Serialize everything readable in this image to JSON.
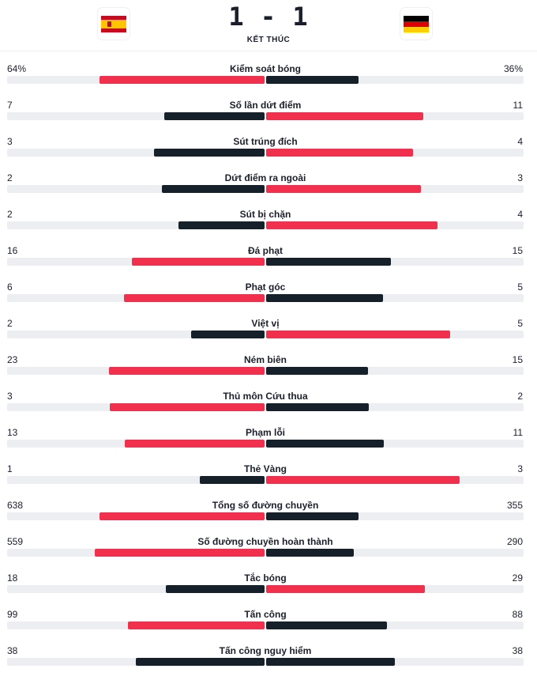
{
  "header": {
    "score": "1 - 1",
    "status": "KẾT THÚC"
  },
  "flags": {
    "home": {
      "icon": "spain-flag-icon",
      "colors": [
        "#c60b1e",
        "#ffc400",
        "#c60b1e"
      ]
    },
    "away": {
      "icon": "germany-flag-icon",
      "colors": [
        "#000000",
        "#dd0000",
        "#ffce00"
      ]
    }
  },
  "colors": {
    "leading": "#f0304d",
    "trailing": "#15202b",
    "track": "#eceef1"
  },
  "stats": [
    {
      "label": "Kiểm soát bóng",
      "home": "64%",
      "away": "36%",
      "home_value": 64,
      "away_value": 36
    },
    {
      "label": "Số lần dứt điểm",
      "home": "7",
      "away": "11",
      "home_value": 7,
      "away_value": 11
    },
    {
      "label": "Sút trúng đích",
      "home": "3",
      "away": "4",
      "home_value": 3,
      "away_value": 4
    },
    {
      "label": "Dứt điểm ra ngoài",
      "home": "2",
      "away": "3",
      "home_value": 2,
      "away_value": 3
    },
    {
      "label": "Sút bị chặn",
      "home": "2",
      "away": "4",
      "home_value": 2,
      "away_value": 4
    },
    {
      "label": "Đá phạt",
      "home": "16",
      "away": "15",
      "home_value": 16,
      "away_value": 15
    },
    {
      "label": "Phạt góc",
      "home": "6",
      "away": "5",
      "home_value": 6,
      "away_value": 5
    },
    {
      "label": "Việt vị",
      "home": "2",
      "away": "5",
      "home_value": 2,
      "away_value": 5
    },
    {
      "label": "Ném biên",
      "home": "23",
      "away": "15",
      "home_value": 23,
      "away_value": 15
    },
    {
      "label": "Thủ môn Cứu thua",
      "home": "3",
      "away": "2",
      "home_value": 3,
      "away_value": 2
    },
    {
      "label": "Phạm lỗi",
      "home": "13",
      "away": "11",
      "home_value": 13,
      "away_value": 11
    },
    {
      "label": "Thẻ Vàng",
      "home": "1",
      "away": "3",
      "home_value": 1,
      "away_value": 3
    },
    {
      "label": "Tổng số đường chuyền",
      "home": "638",
      "away": "355",
      "home_value": 638,
      "away_value": 355
    },
    {
      "label": "Số đường chuyền hoàn thành",
      "home": "559",
      "away": "290",
      "home_value": 559,
      "away_value": 290
    },
    {
      "label": "Tắc bóng",
      "home": "18",
      "away": "29",
      "home_value": 18,
      "away_value": 29
    },
    {
      "label": "Tấn công",
      "home": "99",
      "away": "88",
      "home_value": 99,
      "away_value": 88
    },
    {
      "label": "Tấn công nguy hiểm",
      "home": "38",
      "away": "38",
      "home_value": 38,
      "away_value": 38
    }
  ]
}
